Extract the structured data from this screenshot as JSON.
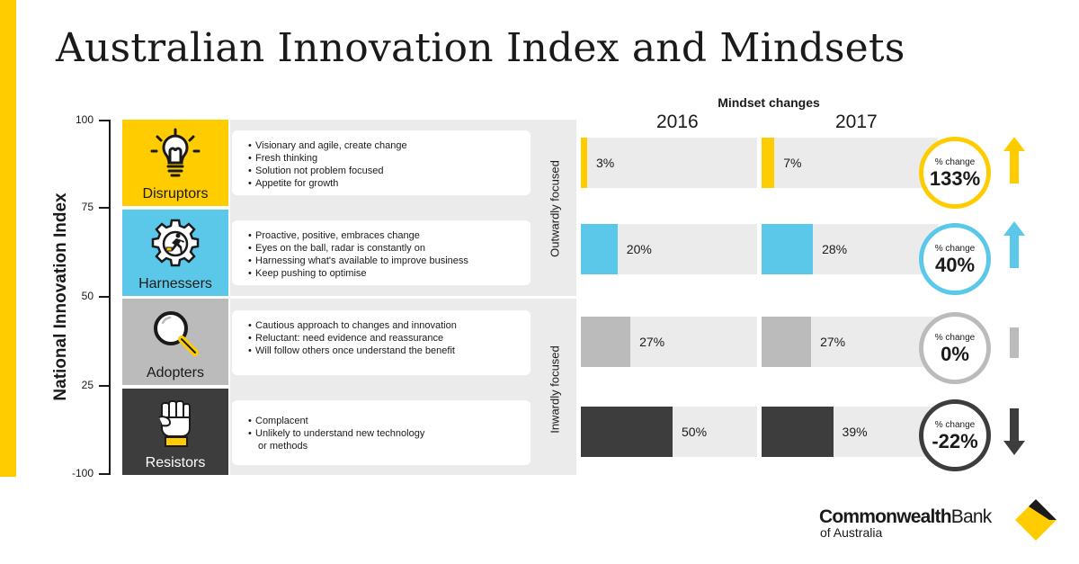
{
  "title": "Australian Innovation Index and Mindsets",
  "mindset_heading": "Mindset changes",
  "years": [
    "2016",
    "2017"
  ],
  "y_axis": {
    "title": "National Innovation Index",
    "ticks": [
      "100",
      "75",
      "50",
      "25",
      "-100"
    ]
  },
  "focus_groups": {
    "outward": "Outwardly focused",
    "inward": "Inwardly focused"
  },
  "colors": {
    "accent": "#FFCC00",
    "harnessers": "#5BC8EA",
    "adopters": "#BBBBBB",
    "resistors": "#3D3D3D",
    "panel": "#EBEBEB"
  },
  "segments": [
    {
      "name": "Disruptors",
      "icon": "lightbulb-icon",
      "traits": [
        "Visionary and agile, create change",
        "Fresh thinking",
        "Solution not problem focused",
        "Appetite for growth"
      ],
      "label_2016": "3%",
      "label_2017": "7%",
      "change_caption": "% change",
      "change_label": "133%",
      "trend": "up"
    },
    {
      "name": "Harnessers",
      "icon": "gear-runner-icon",
      "traits": [
        "Proactive, positive, embraces change",
        "Eyes on the ball, radar is constantly on",
        "Harnessing what's available to improve business",
        "Keep pushing to optimise"
      ],
      "label_2016": "20%",
      "label_2017": "28%",
      "change_caption": "% change",
      "change_label": "40%",
      "trend": "up"
    },
    {
      "name": "Adopters",
      "icon": "magnifier-icon",
      "traits": [
        "Cautious approach to changes and innovation",
        "Reluctant: need evidence and reassurance",
        "Will follow others once understand the benefit"
      ],
      "label_2016": "27%",
      "label_2017": "27%",
      "change_caption": "% change",
      "change_label": "0%",
      "trend": "flat"
    },
    {
      "name": "Resistors",
      "icon": "raised-fist-icon",
      "traits": [
        "Complacent",
        "Unlikely to understand new technology\n or methods"
      ],
      "label_2016": "50%",
      "label_2017": "39%",
      "change_caption": "% change",
      "change_label": "-22%",
      "trend": "down"
    }
  ],
  "chart_data": {
    "type": "bar",
    "title": "Mindset changes",
    "categories": [
      "Disruptors",
      "Harnessers",
      "Adopters",
      "Resistors"
    ],
    "series": [
      {
        "name": "2016",
        "values": [
          3,
          20,
          27,
          50
        ]
      },
      {
        "name": "2017",
        "values": [
          7,
          28,
          27,
          39
        ]
      }
    ],
    "percent_change": [
      133,
      40,
      0,
      -22
    ],
    "unit": "%"
  },
  "logo": {
    "name_bold": "Commonwealth",
    "name_regular": "Bank",
    "sub": "of Australia"
  }
}
